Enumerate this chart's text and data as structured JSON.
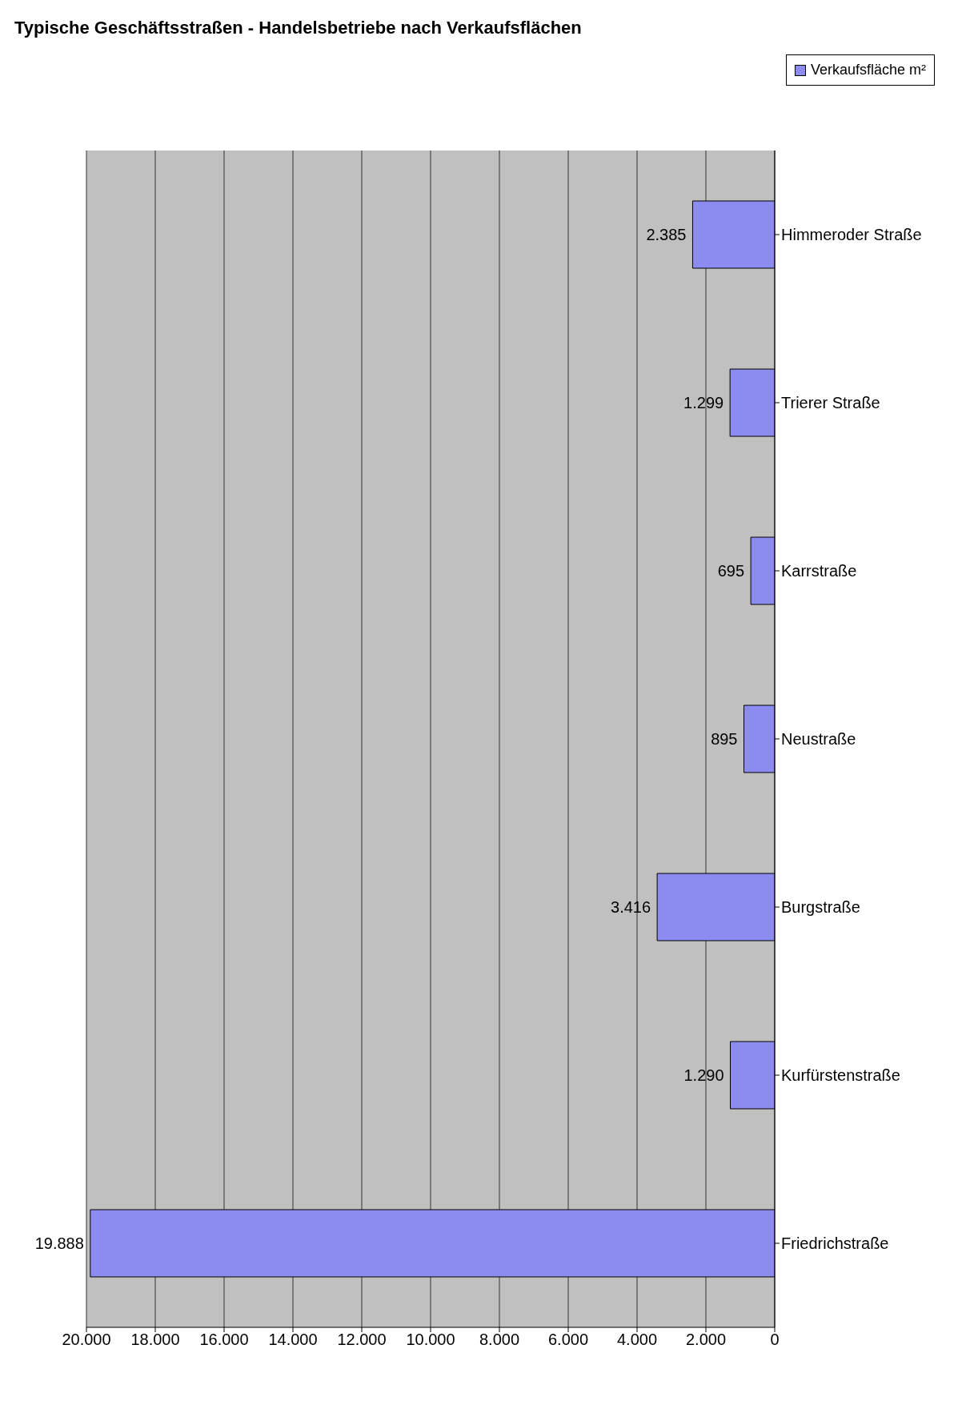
{
  "chart_data": {
    "type": "bar",
    "orientation": "horizontal",
    "title": "Typische Geschäftsstraßen - Handelsbetriebe nach Verkaufsflächen",
    "categories": [
      "Himmeroder Straße",
      "Trierer Straße",
      "Karrstraße",
      "Neustraße",
      "Burgstraße",
      "Kurfürstenstraße",
      "Friedrichstraße"
    ],
    "series": [
      {
        "name": "Verkaufsfläche m²",
        "color": "#8c8cf0",
        "values": [
          2385,
          1299,
          695,
          895,
          3416,
          1290,
          19888
        ]
      }
    ],
    "value_labels": [
      "2.385",
      "1.299",
      "695",
      "895",
      "3.416",
      "1.290",
      "19.888"
    ],
    "xlim": [
      20000,
      0
    ],
    "xticks": [
      {
        "value": 20000,
        "label": "20.000"
      },
      {
        "value": 18000,
        "label": "18.000"
      },
      {
        "value": 16000,
        "label": "16.000"
      },
      {
        "value": 14000,
        "label": "14.000"
      },
      {
        "value": 12000,
        "label": "12.000"
      },
      {
        "value": 10000,
        "label": "10.000"
      },
      {
        "value": 8000,
        "label": "8.000"
      },
      {
        "value": 6000,
        "label": "6.000"
      },
      {
        "value": 4000,
        "label": "4.000"
      },
      {
        "value": 2000,
        "label": "2.000"
      },
      0
    ],
    "grid": "x",
    "legend": "top right"
  }
}
